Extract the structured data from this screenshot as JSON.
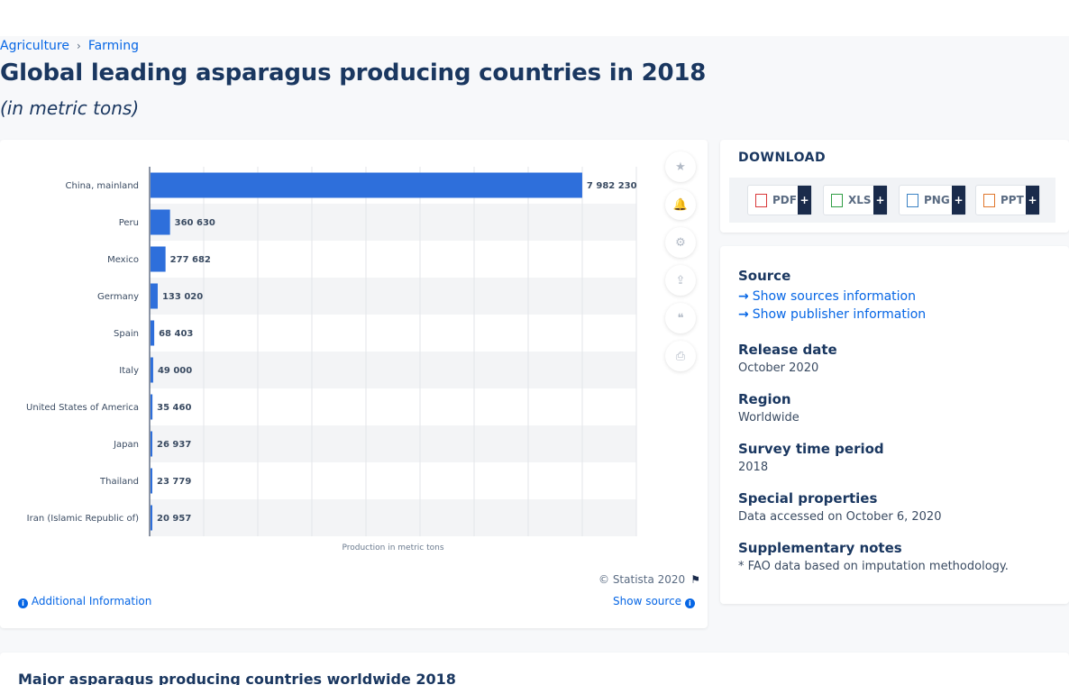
{
  "breadcrumb": {
    "items": [
      "Agriculture",
      "Farming"
    ],
    "separator": "›"
  },
  "page": {
    "title": "Global leading asparagus producing countries in 2018",
    "subtitle": "(in metric tons)"
  },
  "chart_data": {
    "type": "bar",
    "orientation": "horizontal",
    "categories": [
      "China, mainland",
      "Peru",
      "Mexico",
      "Germany",
      "Spain",
      "Italy",
      "United States of America",
      "Japan",
      "Thailand",
      "Iran (Islamic Republic of)"
    ],
    "values": [
      7982230,
      360630,
      277682,
      133020,
      68403,
      49000,
      35460,
      26937,
      23779,
      20957
    ],
    "value_labels": [
      "7 982 230",
      "360 630",
      "277 682",
      "133 020",
      "68 403",
      "49 000",
      "35 460",
      "26 937",
      "23 779",
      "20 957"
    ],
    "xlabel": "Production in metric tons",
    "ylabel": "",
    "xlim": [
      0,
      9000000
    ],
    "grid": true,
    "bar_color": "#2e6fdb"
  },
  "toolbar": {
    "icons": [
      "star-icon",
      "bell-icon",
      "gear-icon",
      "share-icon",
      "quote-icon",
      "print-icon"
    ],
    "glyphs": [
      "★",
      "🔔",
      "⚙",
      "⇪",
      "❝",
      "⎙"
    ]
  },
  "footer": {
    "copyright": "© Statista 2020",
    "additional_info": "Additional Information",
    "show_source": "Show source"
  },
  "download": {
    "title": "DOWNLOAD",
    "buttons": [
      {
        "label": "PDF",
        "color": "#d9383a"
      },
      {
        "label": "XLS",
        "color": "#2f9e44"
      },
      {
        "label": "PNG",
        "color": "#3b82c4"
      },
      {
        "label": "PPT",
        "color": "#e0772c"
      }
    ],
    "plus": "+"
  },
  "info": {
    "source_label": "Source",
    "show_sources": "Show sources information",
    "show_publisher": "Show publisher information",
    "release_date_label": "Release date",
    "release_date": "October 2020",
    "region_label": "Region",
    "region": "Worldwide",
    "survey_period_label": "Survey time period",
    "survey_period": "2018",
    "special_label": "Special properties",
    "special": "Data accessed on October 6, 2020",
    "notes_label": "Supplementary notes",
    "notes": "* FAO data based on imputation methodology."
  },
  "related": {
    "title": "Major asparagus producing countries worldwide 2018"
  }
}
